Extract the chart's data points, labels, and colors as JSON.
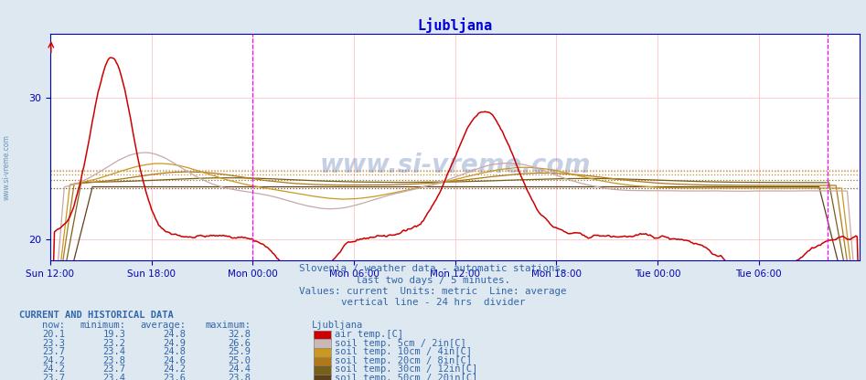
{
  "title": "Ljubljana",
  "title_color": "#0000dd",
  "bg_color": "#dde8f0",
  "plot_bg_color": "#ffffff",
  "ylim": [
    18.5,
    34.5
  ],
  "yticks": [
    20,
    30
  ],
  "xlabel_ticks": [
    "Sun 12:00",
    "Sun 18:00",
    "Mon 00:00",
    "Mon 06:00",
    "Mon 12:00",
    "Mon 18:00",
    "Tue 00:00",
    "Tue 06:00"
  ],
  "n_points": 576,
  "avg_air_temp": 24.8,
  "avg_soil5": 24.9,
  "avg_soil10": 24.8,
  "avg_soil20": 24.6,
  "avg_soil30": 24.2,
  "avg_soil50": 23.6,
  "series_colors": {
    "air_temp": "#cc0000",
    "soil5": "#c8a8a8",
    "soil10": "#c89820",
    "soil20": "#b07818",
    "soil30": "#786018",
    "soil50": "#604018"
  },
  "avg_dotted_colors": {
    "air_temp": "#ff8888",
    "soil5": "#d0b8b8",
    "soil10": "#d0a840",
    "soil20": "#c09030",
    "soil30": "#907828",
    "soil50": "#785030"
  },
  "watermark": "www.si-vreme.com",
  "subtitle1": "Slovenia / weather data - automatic stations.",
  "subtitle2": "last two days / 5 minutes.",
  "subtitle3": "Values: current  Units: metric  Line: average",
  "subtitle4": "vertical line - 24 hrs  divider",
  "table_header": "CURRENT AND HISTORICAL DATA",
  "col_headers": [
    "now:",
    "minimum:",
    "average:",
    "maximum:",
    "Ljubljana"
  ],
  "rows": [
    {
      "now": "20.1",
      "min": "19.3",
      "avg": "24.8",
      "max": "32.8",
      "label": "air temp.[C]",
      "color": "#cc0000"
    },
    {
      "now": "23.3",
      "min": "23.2",
      "avg": "24.9",
      "max": "26.6",
      "label": "soil temp. 5cm / 2in[C]",
      "color": "#c8b8b8"
    },
    {
      "now": "23.7",
      "min": "23.4",
      "avg": "24.8",
      "max": "25.9",
      "label": "soil temp. 10cm / 4in[C]",
      "color": "#c89820"
    },
    {
      "now": "24.2",
      "min": "23.8",
      "avg": "24.6",
      "max": "25.0",
      "label": "soil temp. 20cm / 8in[C]",
      "color": "#b07818"
    },
    {
      "now": "24.2",
      "min": "23.7",
      "avg": "24.2",
      "max": "24.4",
      "label": "soil temp. 30cm / 12in[C]",
      "color": "#786018"
    },
    {
      "now": "23.7",
      "min": "23.4",
      "avg": "23.6",
      "max": "23.8",
      "label": "soil temp. 50cm / 20in[C]",
      "color": "#604018"
    }
  ],
  "text_color": "#3366aa",
  "axis_color": "#0000bb",
  "tick_color": "#0000bb",
  "vline_color": "#ff00ff",
  "vgrid_color": "#ffcccc",
  "hgrid_color": "#ffcccc"
}
